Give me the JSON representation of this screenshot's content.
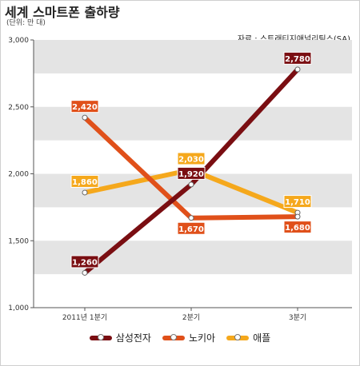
{
  "header": {
    "title": "세계 스마트폰 출하량",
    "unit": "(단위: 만 대)",
    "source": "자료 : 스트래티지애널리틱스(SA)"
  },
  "chart_data": {
    "type": "line",
    "title": "세계 스마트폰 출하량",
    "subtitle": "(단위: 만 대)",
    "categories": [
      "2011년 1분기",
      "2분기",
      "3분기"
    ],
    "ylim": [
      1000,
      3000
    ],
    "yticks": [
      "1,000",
      "1,500",
      "2,000",
      "2,500",
      "3,000"
    ],
    "grid": true,
    "legend_position": "bottom",
    "series": [
      {
        "name": "삼성전자",
        "color": "#7a0e12",
        "values": [
          1260,
          1920,
          2780
        ],
        "labels": [
          "1,260",
          "1,920",
          "2,780"
        ],
        "label_bg": "#7a0e12"
      },
      {
        "name": "노키아",
        "color": "#e0501a",
        "values": [
          2420,
          1670,
          1680
        ],
        "labels": [
          "2,420",
          "1,670",
          "1,680"
        ],
        "label_bg": "#e0501a"
      },
      {
        "name": "애플",
        "color": "#f5a81c",
        "values": [
          1860,
          2030,
          1710
        ],
        "labels": [
          "1,860",
          "2,030",
          "1,710"
        ],
        "label_bg": "#f5a81c"
      }
    ]
  }
}
